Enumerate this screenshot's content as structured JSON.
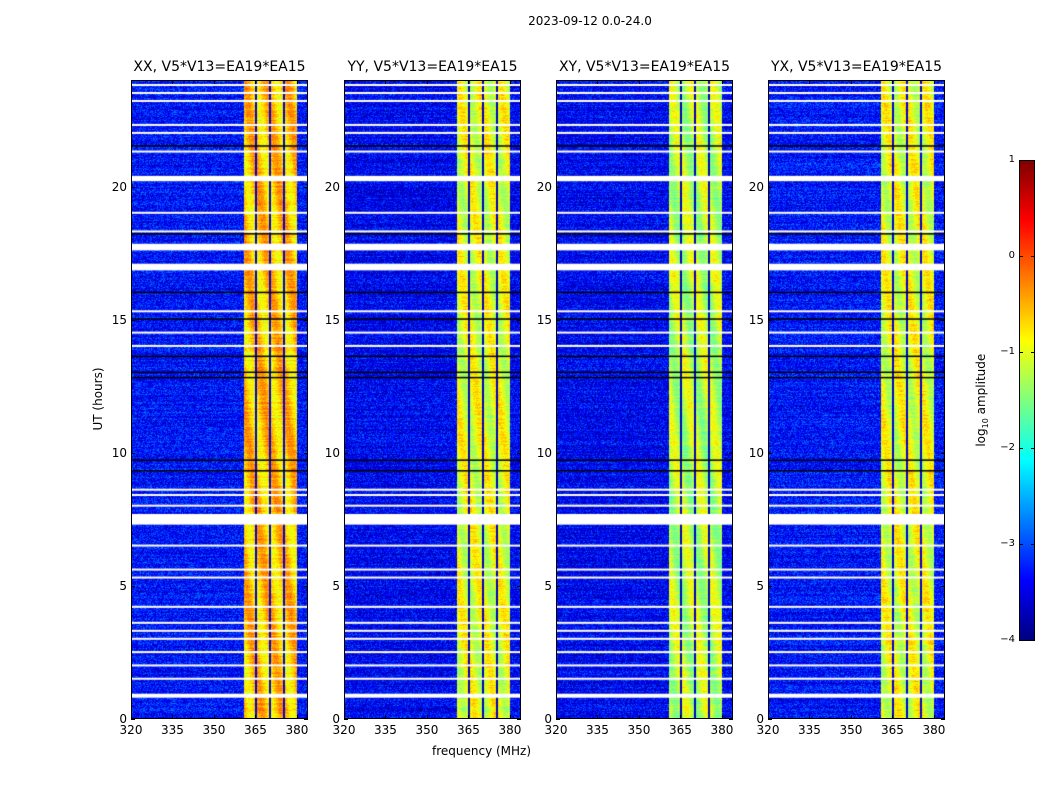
{
  "chart_data": {
    "type": "heatmap",
    "title": "2023-09-12 0.0-24.0",
    "xlabel": "frequency (MHz)",
    "ylabel": "UT (hours)",
    "xlim": [
      320,
      384
    ],
    "ylim": [
      0,
      24
    ],
    "xticks": [
      "320",
      "335",
      "350",
      "365",
      "380"
    ],
    "xtick_values": [
      320,
      335,
      350,
      365,
      380
    ],
    "yticks": [
      "0",
      "5",
      "10",
      "15",
      "20"
    ],
    "ytick_values": [
      0,
      5,
      10,
      15,
      20
    ],
    "panels": [
      {
        "title": "XX, V5*V13=EA19*EA15",
        "background_log_amp": -3.3,
        "band_log_amp": -0.6
      },
      {
        "title": "YY, V5*V13=EA19*EA15",
        "background_log_amp": -3.4,
        "band_log_amp": -1.0
      },
      {
        "title": "XY, V5*V13=EA19*EA15",
        "background_log_amp": -3.4,
        "band_log_amp": -1.2
      },
      {
        "title": "YX, V5*V13=EA19*EA15",
        "background_log_amp": -3.3,
        "band_log_amp": -1.0
      }
    ],
    "band_mhz": [
      360.5,
      380
    ],
    "band_gaps_mhz": [
      365,
      370,
      375
    ],
    "flagged_hours_white": [
      [
        0.8,
        0.95
      ],
      [
        1.5,
        1.55
      ],
      [
        2.0,
        2.05
      ],
      [
        2.5,
        2.55
      ],
      [
        3.0,
        3.05
      ],
      [
        3.3,
        3.35
      ],
      [
        3.6,
        3.65
      ],
      [
        4.2,
        4.25
      ],
      [
        5.3,
        5.35
      ],
      [
        5.6,
        5.65
      ],
      [
        6.5,
        6.55
      ],
      [
        7.3,
        7.7
      ],
      [
        8.0,
        8.05
      ],
      [
        8.4,
        8.45
      ],
      [
        8.6,
        8.65
      ],
      [
        14.0,
        14.05
      ],
      [
        14.5,
        14.55
      ],
      [
        15.3,
        15.35
      ],
      [
        16.85,
        17.1
      ],
      [
        17.6,
        17.85
      ],
      [
        18.3,
        18.35
      ],
      [
        19.0,
        19.05
      ],
      [
        20.2,
        20.4
      ],
      [
        21.3,
        21.35
      ],
      [
        22.0,
        22.05
      ],
      [
        22.3,
        22.35
      ],
      [
        23.2,
        23.25
      ],
      [
        23.5,
        23.55
      ],
      [
        23.8,
        23.85
      ]
    ],
    "flagged_hours_black": [
      [
        9.3,
        9.35
      ],
      [
        9.7,
        9.75
      ],
      [
        12.8,
        12.85
      ],
      [
        13.0,
        13.05
      ],
      [
        13.6,
        13.65
      ],
      [
        15.0,
        15.05
      ],
      [
        16.0,
        16.05
      ],
      [
        18.2,
        18.25
      ],
      [
        21.5,
        21.55
      ]
    ],
    "colorbar": {
      "label": "log10 amplitude",
      "label_main": "log",
      "label_sub": "10",
      "label_rest": " amplitude",
      "range": [
        -4,
        1
      ],
      "ticks": [
        "1",
        "0",
        "−1",
        "−2",
        "−3",
        "−4"
      ],
      "tick_values": [
        1,
        0,
        -1,
        -2,
        -3,
        -4
      ],
      "colormap": "jet"
    }
  }
}
